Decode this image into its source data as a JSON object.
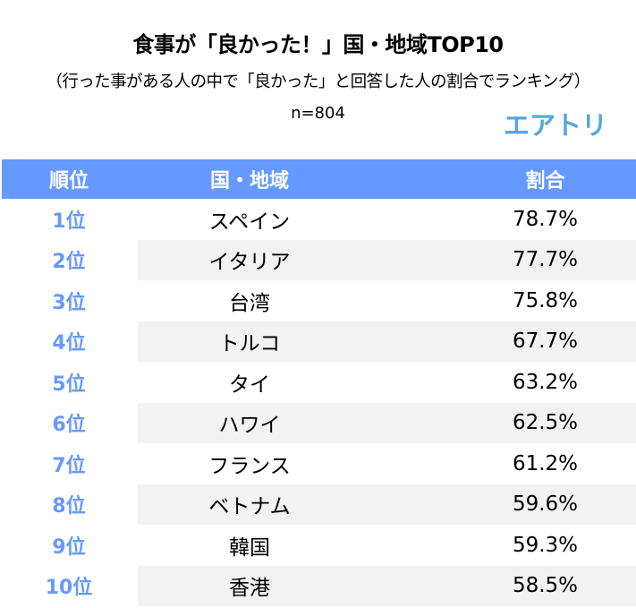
{
  "header": {
    "title": "食事が「良かった！」国・地域TOP10",
    "subtitle": "（行った事がある人の中で「良かった」と回答した人の割合でランキング）",
    "sample_size": "n=804",
    "logo": "エアトリ"
  },
  "colors": {
    "header_bg": "#6699ff",
    "rank_text": "#6699ff",
    "alt_row_bg": "#f2f2f2",
    "logo": "#56a6dc"
  },
  "table": {
    "columns": [
      "順位",
      "国・地域",
      "割合"
    ],
    "rows": [
      {
        "rank": "1位",
        "country": "スペイン",
        "share": "78.7%"
      },
      {
        "rank": "2位",
        "country": "イタリア",
        "share": "77.7%"
      },
      {
        "rank": "3位",
        "country": "台湾",
        "share": "75.8%"
      },
      {
        "rank": "4位",
        "country": "トルコ",
        "share": "67.7%"
      },
      {
        "rank": "5位",
        "country": "タイ",
        "share": "63.2%"
      },
      {
        "rank": "6位",
        "country": "ハワイ",
        "share": "62.5%"
      },
      {
        "rank": "7位",
        "country": "フランス",
        "share": "61.2%"
      },
      {
        "rank": "8位",
        "country": "ベトナム",
        "share": "59.6%"
      },
      {
        "rank": "9位",
        "country": "韓国",
        "share": "59.3%"
      },
      {
        "rank": "10位",
        "country": "香港",
        "share": "58.5%"
      }
    ]
  }
}
